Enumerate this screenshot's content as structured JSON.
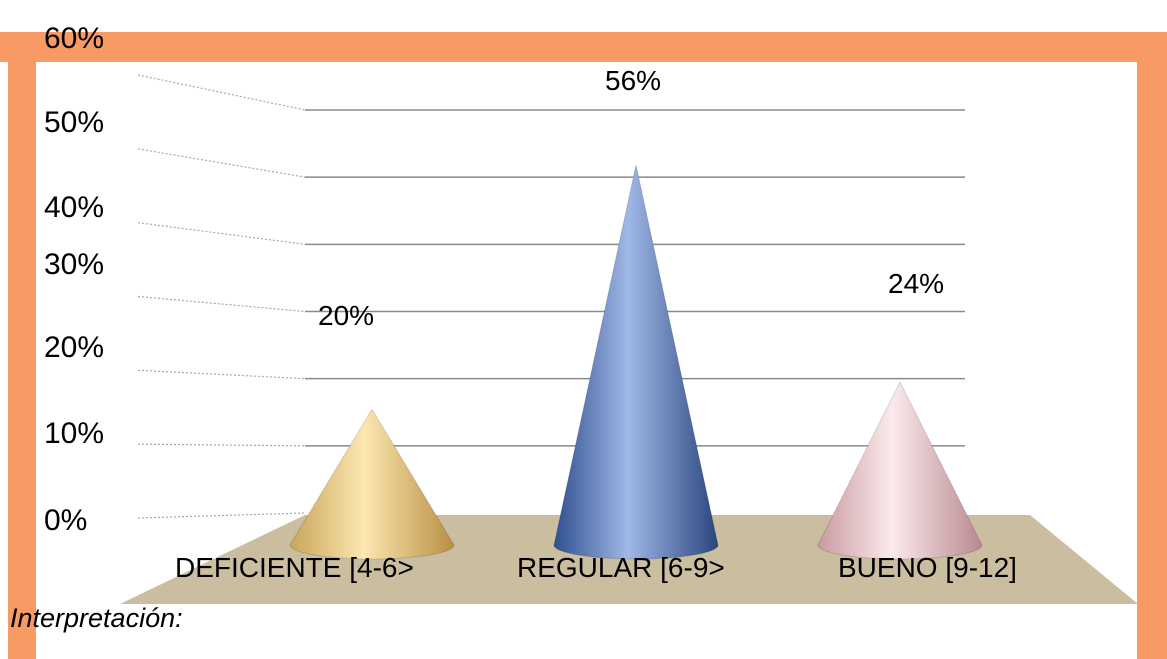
{
  "chart_data": {
    "type": "bar",
    "style": "3d-cone",
    "categories": [
      "DEFICIENTE [4-6>",
      "REGULAR [6-9>",
      "BUENO [9-12]"
    ],
    "values": [
      20,
      56,
      24
    ],
    "data_labels": [
      "20%",
      "56%",
      "24%"
    ],
    "y_ticks": [
      "0%",
      "10%",
      "20%",
      "30%",
      "40%",
      "50%",
      "60%"
    ],
    "ylim": [
      0,
      60
    ],
    "grid": true,
    "legend": "none",
    "colors": [
      "#e8c77a",
      "#4a72b8",
      "#e6c4c8"
    ],
    "frame_color": "#f79a63",
    "floor_color": "#cbbda0"
  },
  "caption": "Interpretación:"
}
